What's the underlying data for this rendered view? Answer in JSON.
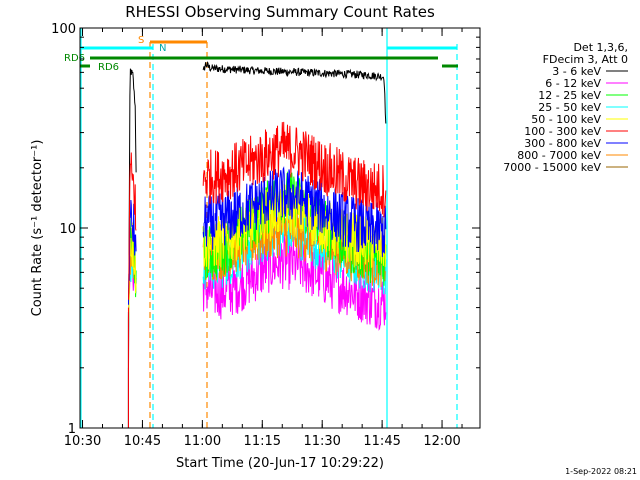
{
  "chart_data": {
    "type": "line",
    "title": "RHESSI Observing Summary Count Rates",
    "xlabel": "Start Time (20-Jun-17 10:29:22)",
    "ylabel": "Count Rate (s⁻¹ detector⁻¹)",
    "y_scale": "log",
    "ylim": [
      1,
      100
    ],
    "xlim_minutes": [
      629.37,
      729.5
    ],
    "x_ticks": [
      {
        "label": "10:30",
        "minutes": 630
      },
      {
        "label": "10:45",
        "minutes": 645
      },
      {
        "label": "11:00",
        "minutes": 660
      },
      {
        "label": "11:15",
        "minutes": 675
      },
      {
        "label": "11:30",
        "minutes": 690
      },
      {
        "label": "11:45",
        "minutes": 705
      },
      {
        "label": "12:00",
        "minutes": 720
      }
    ],
    "y_ticks": [
      {
        "label": "1",
        "value": 1
      },
      {
        "label": "10",
        "value": 10
      },
      {
        "label": "100",
        "value": 100
      }
    ],
    "legend_header": [
      "Det 1,3,6,",
      "FDecim 3, Att 0"
    ],
    "legend_position": "right",
    "series": [
      {
        "name": "3 - 6 keV",
        "color": "#000000",
        "points": [
          [
            641.5,
            2.0
          ],
          [
            641.9,
            62
          ],
          [
            642.6,
            58
          ],
          [
            643.2,
            40
          ],
          [
            643.5,
            15
          ],
          [
            659.5,
            null
          ],
          [
            660.2,
            60
          ],
          [
            660.8,
            66
          ],
          [
            662,
            63
          ],
          [
            668,
            62
          ],
          [
            675,
            61
          ],
          [
            685,
            60
          ],
          [
            695,
            59
          ],
          [
            702,
            58
          ],
          [
            705.5,
            57
          ],
          [
            706.0,
            30
          ]
        ]
      },
      {
        "name": "6 - 12 keV",
        "color": "#ff00ff",
        "points": [
          [
            641.5,
            3.5
          ],
          [
            641.9,
            8.0
          ],
          [
            642.6,
            6.5
          ],
          [
            643.2,
            5.5
          ],
          [
            643.5,
            4.0
          ],
          [
            659.5,
            null
          ],
          [
            660.2,
            5.2
          ],
          [
            662,
            4.8
          ],
          [
            665,
            4.8
          ],
          [
            668,
            5.0
          ],
          [
            672,
            5.6
          ],
          [
            676,
            6.4
          ],
          [
            680,
            6.8
          ],
          [
            684,
            6.6
          ],
          [
            688,
            6.0
          ],
          [
            692,
            5.4
          ],
          [
            696,
            5.0
          ],
          [
            700,
            4.6
          ],
          [
            703,
            4.3
          ],
          [
            706,
            4.3
          ]
        ]
      },
      {
        "name": "12 - 25 keV",
        "color": "#00ff00",
        "points": [
          [
            641.5,
            3.8
          ],
          [
            641.9,
            9.5
          ],
          [
            642.6,
            8.0
          ],
          [
            643.2,
            6.5
          ],
          [
            643.5,
            4.5
          ],
          [
            659.5,
            null
          ],
          [
            660.2,
            7.5
          ],
          [
            664,
            7.6
          ],
          [
            668,
            8.8
          ],
          [
            672,
            10.5
          ],
          [
            676,
            12.5
          ],
          [
            680,
            14.5
          ],
          [
            684,
            13.5
          ],
          [
            688,
            11.5
          ],
          [
            692,
            9.5
          ],
          [
            696,
            8.3
          ],
          [
            700,
            7.6
          ],
          [
            703,
            7.2
          ],
          [
            706,
            7.0
          ]
        ]
      },
      {
        "name": "25 - 50 keV",
        "color": "#00ffff",
        "points": [
          [
            641.5,
            3.6
          ],
          [
            641.9,
            7.5
          ],
          [
            642.6,
            6.8
          ],
          [
            643.2,
            5.8
          ],
          [
            643.5,
            4.2
          ],
          [
            659.5,
            null
          ],
          [
            660.2,
            6.6
          ],
          [
            664,
            6.7
          ],
          [
            668,
            7.3
          ],
          [
            672,
            8.2
          ],
          [
            676,
            9.2
          ],
          [
            680,
            10.0
          ],
          [
            684,
            9.6
          ],
          [
            688,
            8.7
          ],
          [
            692,
            7.8
          ],
          [
            696,
            7.1
          ],
          [
            700,
            6.7
          ],
          [
            703,
            6.5
          ],
          [
            706,
            6.4
          ]
        ]
      },
      {
        "name": "50 - 100 keV",
        "color": "#ffff00",
        "points": [
          [
            641.5,
            3.6
          ],
          [
            641.9,
            9.0
          ],
          [
            642.6,
            8.2
          ],
          [
            643.2,
            7.0
          ],
          [
            643.5,
            4.6
          ],
          [
            659.5,
            null
          ],
          [
            660.2,
            8.3
          ],
          [
            664,
            8.5
          ],
          [
            668,
            9.3
          ],
          [
            672,
            10.3
          ],
          [
            676,
            11.6
          ],
          [
            680,
            12.5
          ],
          [
            684,
            12.1
          ],
          [
            688,
            11.0
          ],
          [
            692,
            9.9
          ],
          [
            696,
            9.0
          ],
          [
            700,
            8.5
          ],
          [
            703,
            8.3
          ],
          [
            706,
            8.2
          ]
        ]
      },
      {
        "name": "100 - 300 keV",
        "color": "#ff0000",
        "points": [
          [
            641.5,
            4.0
          ],
          [
            641.9,
            19
          ],
          [
            642.6,
            17
          ],
          [
            643.2,
            14
          ],
          [
            643.5,
            6.0
          ],
          [
            659.5,
            null
          ],
          [
            660.2,
            18
          ],
          [
            664,
            18.2
          ],
          [
            668,
            19.5
          ],
          [
            672,
            21
          ],
          [
            676,
            23
          ],
          [
            680,
            25
          ],
          [
            684,
            24
          ],
          [
            688,
            21.5
          ],
          [
            692,
            19.3
          ],
          [
            696,
            17.5
          ],
          [
            700,
            16.3
          ],
          [
            703,
            15.8
          ],
          [
            706,
            15.5
          ]
        ]
      },
      {
        "name": "300 - 800 keV",
        "color": "#0000ff",
        "points": [
          [
            641.5,
            3.8
          ],
          [
            641.9,
            11
          ],
          [
            642.6,
            10.2
          ],
          [
            643.2,
            9.0
          ],
          [
            643.5,
            5.0
          ],
          [
            659.5,
            null
          ],
          [
            660.2,
            10.6
          ],
          [
            664,
            10.8
          ],
          [
            668,
            11.6
          ],
          [
            672,
            12.8
          ],
          [
            676,
            14.0
          ],
          [
            680,
            14.8
          ],
          [
            684,
            14.4
          ],
          [
            688,
            13.2
          ],
          [
            692,
            12.0
          ],
          [
            696,
            10.9
          ],
          [
            700,
            10.2
          ],
          [
            703,
            9.8
          ],
          [
            706,
            9.5
          ]
        ]
      },
      {
        "name": "800 - 7000 keV",
        "color": "#ff8800",
        "points": [
          [
            641.5,
            3.7
          ],
          [
            641.9,
            7.8
          ],
          [
            642.6,
            7.2
          ],
          [
            643.2,
            6.2
          ],
          [
            643.5,
            4.3
          ],
          [
            659.5,
            null
          ],
          [
            660.2,
            7.4
          ],
          [
            664,
            7.5
          ],
          [
            668,
            8.0
          ],
          [
            672,
            8.7
          ],
          [
            676,
            9.4
          ],
          [
            680,
            9.9
          ],
          [
            684,
            9.6
          ],
          [
            688,
            8.9
          ],
          [
            692,
            8.2
          ],
          [
            696,
            7.6
          ],
          [
            700,
            7.2
          ],
          [
            703,
            7.0
          ],
          [
            706,
            6.9
          ]
        ]
      },
      {
        "name": "7000 - 15000 keV",
        "color": "#996600",
        "points": []
      }
    ],
    "annotations": {
      "rd6_label": "RD6",
      "rd6_bar_label": "RD6",
      "s_label": "S",
      "n_label": "N"
    },
    "timestamp": "1-Sep-2022 08:21"
  }
}
